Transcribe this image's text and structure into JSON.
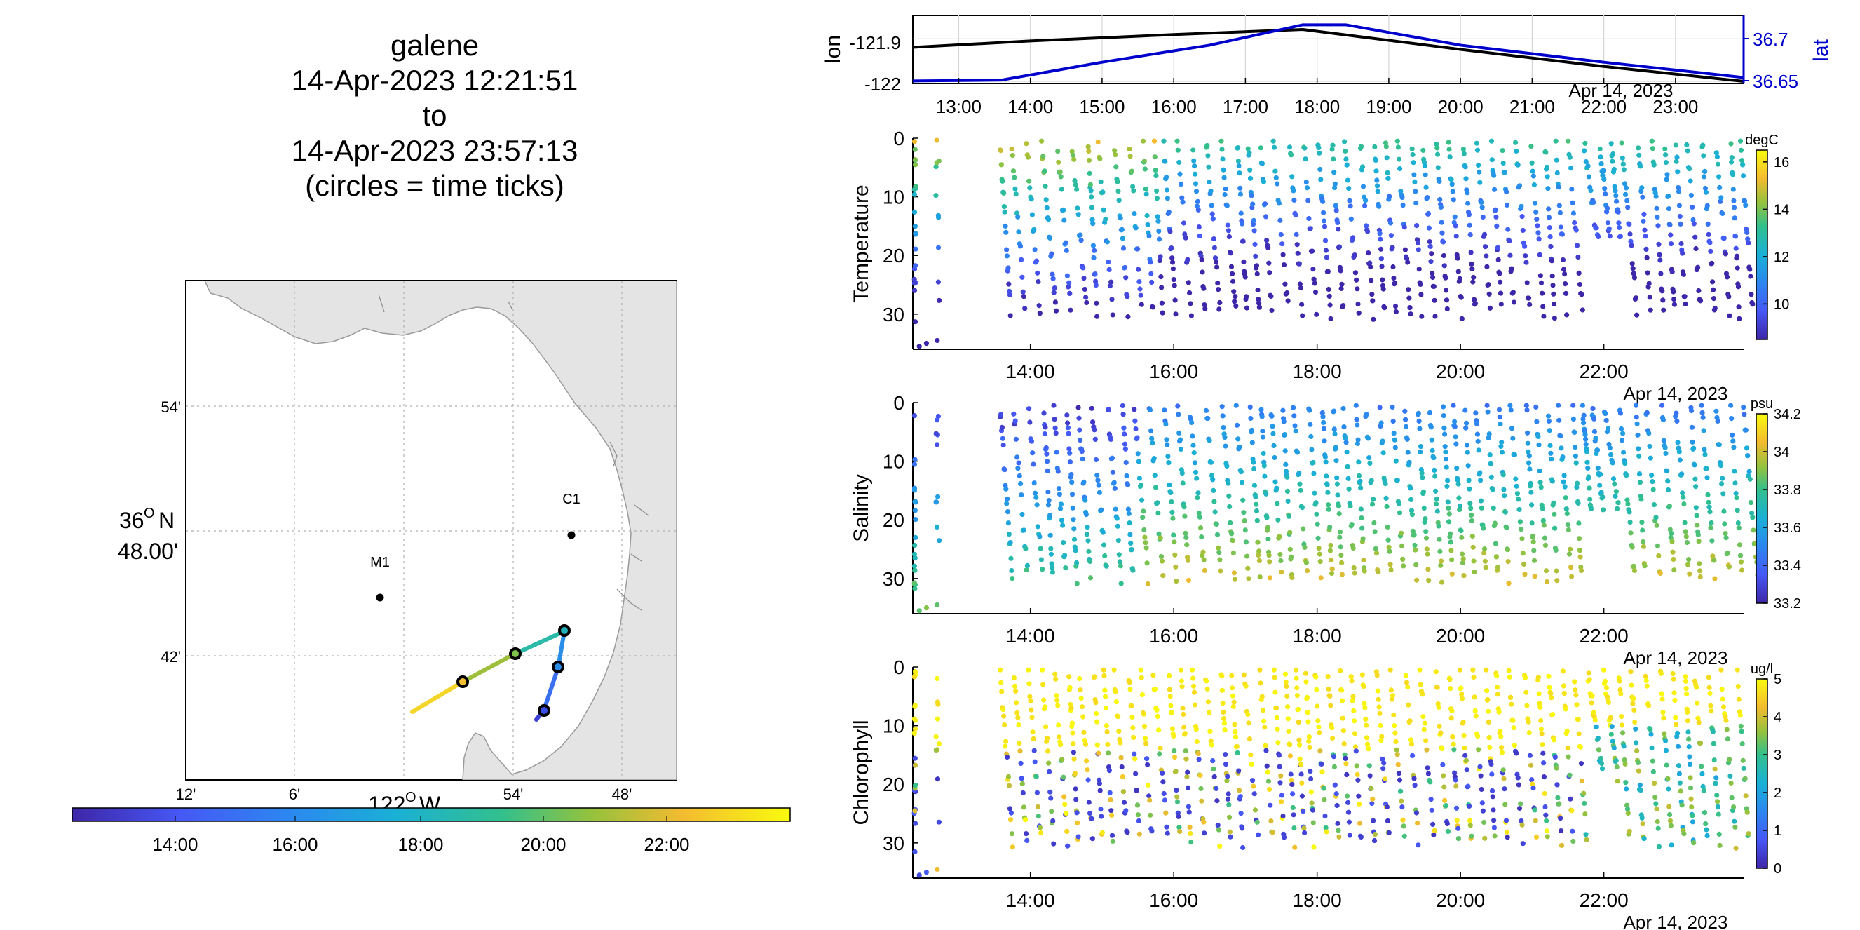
{
  "title": {
    "vehicle": "galene",
    "start": "14-Apr-2023 12:21:51",
    "to": "to",
    "end": "14-Apr-2023 23:57:13",
    "note": "(circles = time ticks)"
  },
  "map": {
    "lat_ticks": [
      "54'",
      "42'"
    ],
    "lat_center_deg": "36",
    "lat_center_min": "N",
    "lat_center_sub": "48.00'",
    "lon_ticks": [
      "12'",
      "6'",
      "54'",
      "48'"
    ],
    "lon_center_deg": "122",
    "lon_center_dir": "W",
    "stations": [
      {
        "name": "M1"
      },
      {
        "name": "C1"
      }
    ],
    "colorbar_ticks": [
      "14:00",
      "16:00",
      "18:00",
      "20:00",
      "22:00"
    ],
    "colors": {
      "land": "#e4e4e4",
      "coast": "#9a9a9a",
      "grid": "#b0b0b0"
    }
  },
  "chart_data": [
    {
      "type": "line",
      "name": "position-timeseries",
      "ylabel_left": "lon",
      "ylabel_right": "lat",
      "xlabel_date": "Apr 14, 2023",
      "x_ticks": [
        "13:00",
        "14:00",
        "15:00",
        "16:00",
        "17:00",
        "18:00",
        "19:00",
        "20:00",
        "21:00",
        "22:00",
        "23:00"
      ],
      "y_left_ticks": [
        "-121.9",
        "-122"
      ],
      "y_right_ticks": [
        "36.7",
        "36.65"
      ],
      "y_left_lim": [
        -122.005,
        -121.845
      ],
      "y_right_lim": [
        36.645,
        36.725
      ],
      "series": [
        {
          "name": "lon",
          "axis": "left",
          "color": "#000000",
          "x": [
            12.36,
            14.0,
            16.0,
            17.8,
            20.0,
            22.0,
            23.95
          ],
          "y": [
            -121.92,
            -121.905,
            -121.89,
            -121.878,
            -121.925,
            -121.965,
            -122.0
          ]
        },
        {
          "name": "lat",
          "axis": "right",
          "color": "#0000cc",
          "x": [
            12.36,
            13.6,
            15.0,
            16.5,
            17.8,
            18.4,
            20.0,
            22.0,
            23.95
          ],
          "y": [
            36.648,
            36.649,
            36.67,
            36.69,
            36.714,
            36.714,
            36.69,
            36.67,
            36.652
          ]
        }
      ]
    },
    {
      "type": "scatter",
      "name": "temperature",
      "ylabel": "Temperature",
      "unit": "degC",
      "x_ticks": [
        "14:00",
        "16:00",
        "18:00",
        "20:00",
        "22:00"
      ],
      "xlabel_date": "Apr 14, 2023",
      "y_ticks": [
        "0",
        "10",
        "20",
        "30"
      ],
      "ylim": [
        0,
        36
      ],
      "cbar_ticks": [
        "16",
        "14",
        "12",
        "10"
      ],
      "cbar_lim": [
        8.5,
        16.5
      ]
    },
    {
      "type": "scatter",
      "name": "salinity",
      "ylabel": "Salinity",
      "unit": "psu",
      "x_ticks": [
        "14:00",
        "16:00",
        "18:00",
        "20:00",
        "22:00"
      ],
      "xlabel_date": "Apr 14, 2023",
      "y_ticks": [
        "0",
        "10",
        "20",
        "30"
      ],
      "ylim": [
        0,
        36
      ],
      "cbar_ticks": [
        "34.2",
        "34",
        "33.8",
        "33.6",
        "33.4",
        "33.2"
      ],
      "cbar_lim": [
        33.2,
        34.2
      ]
    },
    {
      "type": "scatter",
      "name": "chlorophyll",
      "ylabel": "Chlorophyll",
      "unit": "ug/l",
      "x_ticks": [
        "14:00",
        "16:00",
        "18:00",
        "20:00",
        "22:00"
      ],
      "xlabel_date": "Apr 14, 2023",
      "y_ticks": [
        "0",
        "10",
        "20",
        "30"
      ],
      "ylim": [
        0,
        36
      ],
      "cbar_ticks": [
        "5",
        "4",
        "3",
        "2",
        "1",
        "0"
      ],
      "cbar_lim": [
        0,
        5
      ]
    }
  ]
}
